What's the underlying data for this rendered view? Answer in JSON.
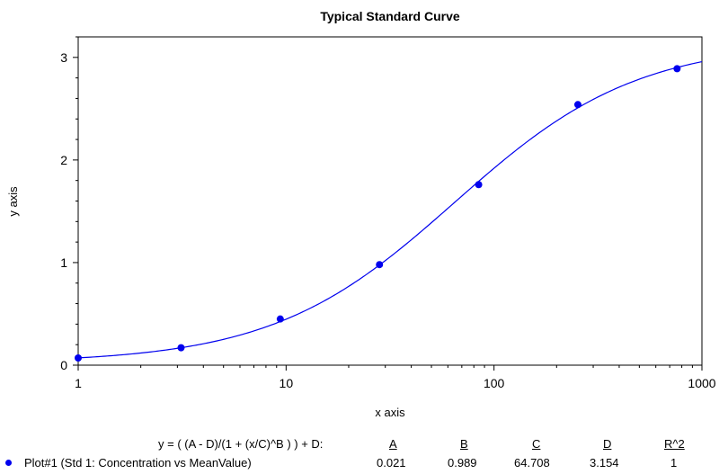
{
  "colors": {
    "series": "#0000ee",
    "axis": "#000000",
    "background": "#ffffff"
  },
  "chart_data": {
    "type": "scatter",
    "title": "Typical Standard Curve",
    "xlabel": "x axis",
    "ylabel": "y axis",
    "x_scale": "log",
    "xlim": [
      1,
      1000
    ],
    "ylim": [
      0,
      3.2
    ],
    "x_ticks": [
      "1",
      "10",
      "100",
      "1000"
    ],
    "y_ticks": [
      "0",
      "1",
      "2",
      "3"
    ],
    "grid": false,
    "legend": "bottom",
    "series": [
      {
        "name": "Plot#1 (Std 1: Concentration vs MeanValue)",
        "x": [
          1,
          3.125,
          9.375,
          28.125,
          84.375,
          253.125,
          759.375
        ],
        "y": [
          0.07,
          0.17,
          0.45,
          0.98,
          1.76,
          2.54,
          2.89
        ]
      }
    ],
    "fit": {
      "equation": "y = ( (A - D)/(1 + (x/C)^B ) ) + D:",
      "headers": [
        "A",
        "B",
        "C",
        "D",
        "R^2"
      ],
      "values": [
        "0.021",
        "0.989",
        "64.708",
        "3.154",
        "1"
      ],
      "params": {
        "A": 0.021,
        "B": 0.989,
        "C": 64.708,
        "D": 3.154
      }
    }
  }
}
